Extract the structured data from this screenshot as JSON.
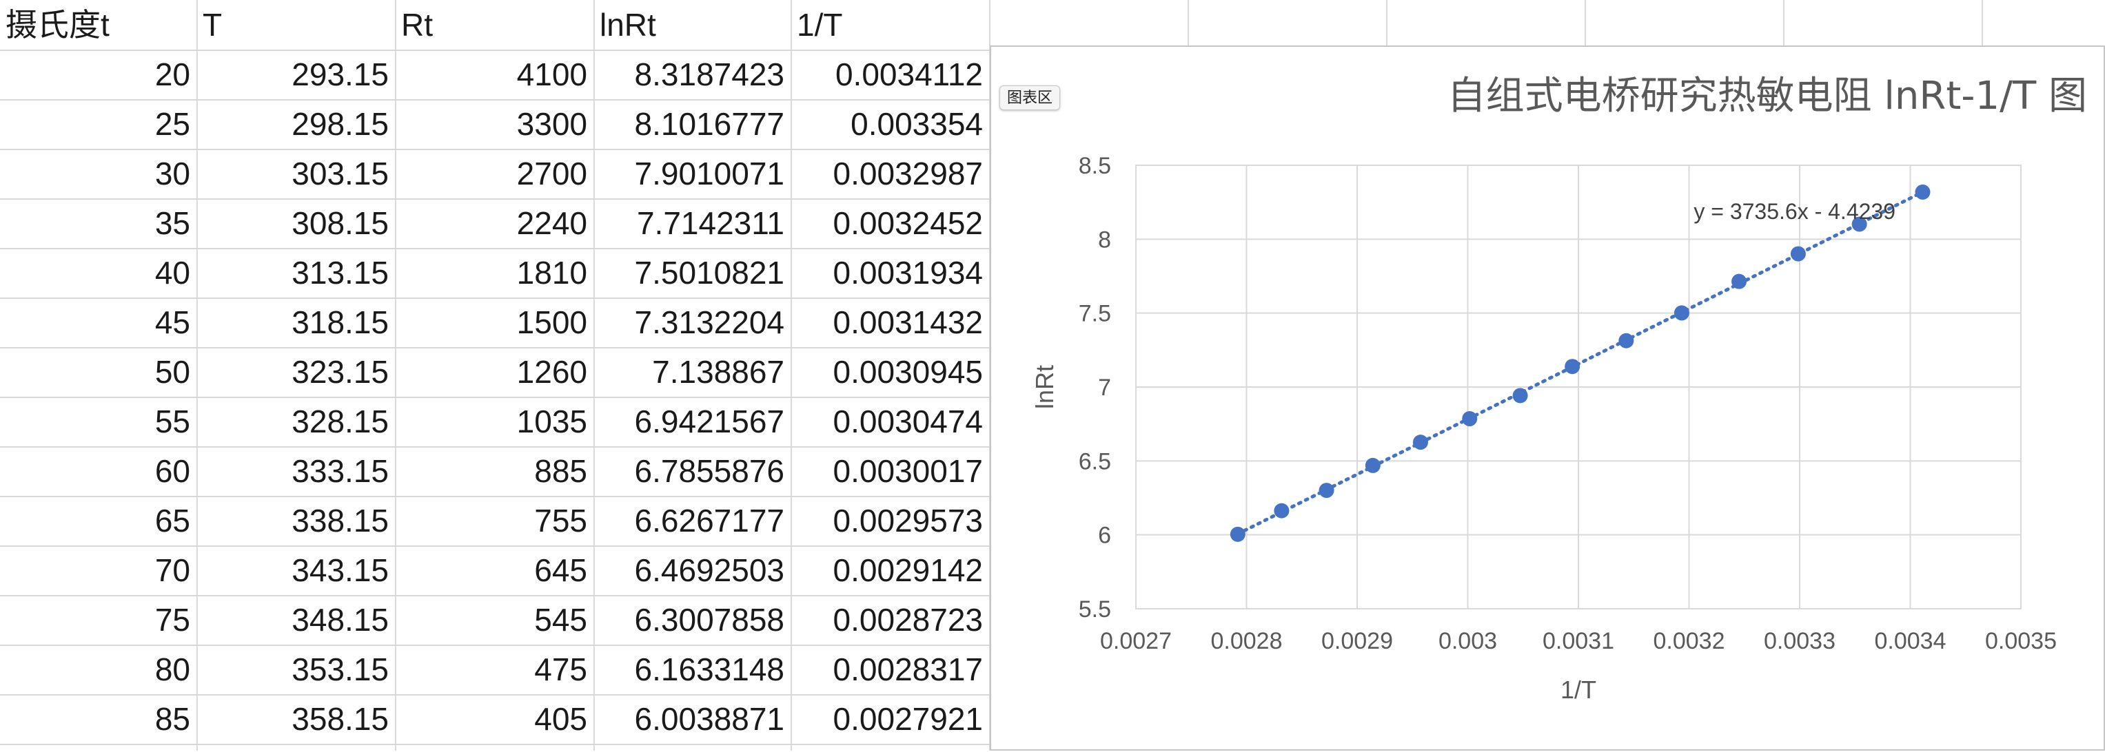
{
  "sheet": {
    "headers": [
      "摄氏度t",
      "T",
      "Rt",
      "lnRt",
      "1/T"
    ],
    "rows": [
      [
        "20",
        "293.15",
        "4100",
        "8.3187423",
        "0.0034112"
      ],
      [
        "25",
        "298.15",
        "3300",
        "8.1016777",
        "0.003354"
      ],
      [
        "30",
        "303.15",
        "2700",
        "7.9010071",
        "0.0032987"
      ],
      [
        "35",
        "308.15",
        "2240",
        "7.7142311",
        "0.0032452"
      ],
      [
        "40",
        "313.15",
        "1810",
        "7.5010821",
        "0.0031934"
      ],
      [
        "45",
        "318.15",
        "1500",
        "7.3132204",
        "0.0031432"
      ],
      [
        "50",
        "323.15",
        "1260",
        "7.138867",
        "0.0030945"
      ],
      [
        "55",
        "328.15",
        "1035",
        "6.9421567",
        "0.0030474"
      ],
      [
        "60",
        "333.15",
        "885",
        "6.7855876",
        "0.0030017"
      ],
      [
        "65",
        "338.15",
        "755",
        "6.6267177",
        "0.0029573"
      ],
      [
        "70",
        "343.15",
        "645",
        "6.4692503",
        "0.0029142"
      ],
      [
        "75",
        "348.15",
        "545",
        "6.3007858",
        "0.0028723"
      ],
      [
        "80",
        "353.15",
        "475",
        "6.1633148",
        "0.0028317"
      ],
      [
        "85",
        "358.15",
        "405",
        "6.0038871",
        "0.0027921"
      ]
    ]
  },
  "chart_tag": "图表区",
  "chart_data": {
    "type": "scatter",
    "title": "自组式电桥研究热敏电阻 lnRt-1/T 图",
    "xlabel": "1/T",
    "ylabel": "lnRt",
    "xlim": [
      0.0027,
      0.0035
    ],
    "ylim": [
      5.5,
      8.5
    ],
    "x_ticks": [
      "0.0027",
      "0.0028",
      "0.0029",
      "0.003",
      "0.0031",
      "0.0032",
      "0.0033",
      "0.0034",
      "0.0035"
    ],
    "y_ticks": [
      "5.5",
      "6",
      "6.5",
      "7",
      "7.5",
      "8",
      "8.5"
    ],
    "grid": true,
    "legend": "none",
    "x": [
      0.0034112,
      0.003354,
      0.0032987,
      0.0032452,
      0.0031934,
      0.0031432,
      0.0030945,
      0.0030474,
      0.0030017,
      0.0029573,
      0.0029142,
      0.0028723,
      0.0028317,
      0.0027921
    ],
    "y": [
      8.3187423,
      8.1016777,
      7.9010071,
      7.7142311,
      7.5010821,
      7.3132204,
      7.138867,
      6.9421567,
      6.7855876,
      6.6267177,
      6.4692503,
      6.3007858,
      6.1633148,
      6.0038871
    ],
    "trendline": {
      "type": "linear",
      "slope": 3735.6,
      "intercept": -4.4239,
      "label": "y = 3735.6x - 4.4239",
      "style": "dotted"
    },
    "colors": {
      "marker": "#4472c4",
      "grid": "#d9d9d9",
      "text": "#595959"
    }
  }
}
